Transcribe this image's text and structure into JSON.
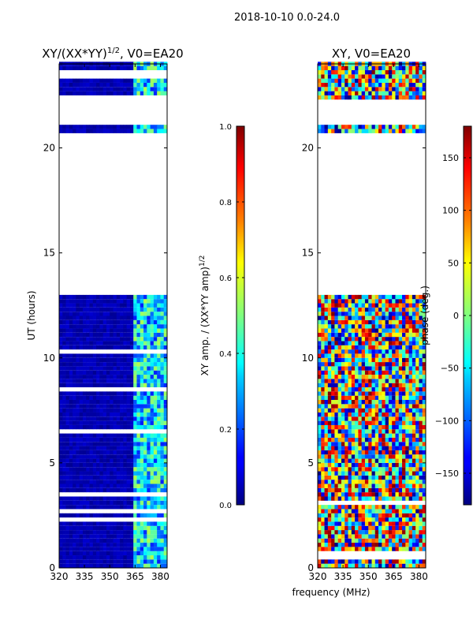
{
  "figure_title": "2018-10-10 0.0-24.0",
  "shared_xlabel": "frequency (MHz)",
  "chart_data": [
    {
      "type": "heatmap",
      "title": "XY/(XX*YY)$^{1/2}$, V0=EA20",
      "xlabel": "frequency (MHz)",
      "ylabel": "UT (hours)",
      "xlim": [
        320,
        384
      ],
      "ylim": [
        0,
        24
      ],
      "x_ticks": [
        320,
        335,
        350,
        365,
        380
      ],
      "y_ticks": [
        0,
        5,
        10,
        15,
        20
      ],
      "colorbar": {
        "label": "XY amp. / (XX*YY amp)$^{1/2}$",
        "range": [
          0.0,
          1.0
        ],
        "ticks": [
          0.0,
          0.2,
          0.4,
          0.6,
          0.8,
          1.0
        ],
        "tick_labels": [
          "0.0",
          "0.2",
          "0.4",
          "0.6",
          "0.8",
          "1.0"
        ]
      },
      "data_coverage_ut": [
        [
          0.0,
          13.0
        ],
        [
          20.7,
          21.0
        ],
        [
          22.3,
          24.0
        ]
      ],
      "description_values": {
        "low_band_value": 0.05,
        "high_band_freq_range": [
          363,
          382
        ],
        "high_band_value_range": [
          0.2,
          0.6
        ]
      }
    },
    {
      "type": "heatmap",
      "title": "XY, V0=EA20",
      "xlabel": "frequency (MHz)",
      "ylabel": "",
      "xlim": [
        320,
        384
      ],
      "ylim": [
        0,
        24
      ],
      "x_ticks": [
        320,
        335,
        350,
        365,
        380
      ],
      "y_ticks": [
        0,
        5,
        10,
        15,
        20
      ],
      "colorbar": {
        "label": "phase (deg.)",
        "range": [
          -180,
          180
        ],
        "ticks": [
          -150,
          -100,
          -50,
          0,
          50,
          100,
          150
        ],
        "tick_labels": [
          "−150",
          "−100",
          "−50",
          "0",
          "50",
          "100",
          "150"
        ]
      },
      "data_coverage_ut": [
        [
          0.0,
          13.0
        ],
        [
          20.7,
          21.0
        ],
        [
          22.3,
          24.0
        ]
      ]
    }
  ],
  "colors": {
    "jet_dark_blue": "#00007f",
    "frame": "#000000"
  }
}
